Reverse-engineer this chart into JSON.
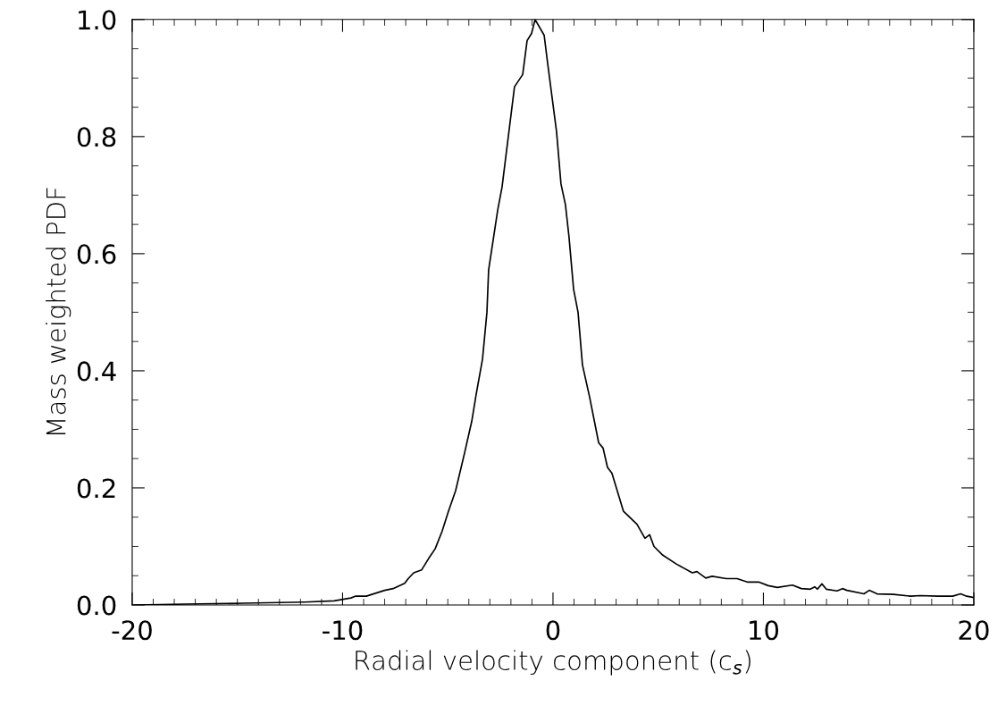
{
  "chart_data": {
    "type": "line",
    "xlabel": "Radial velocity component (c$_{s}$)",
    "ylabel": "Mass weighted PDF",
    "xlim": [
      -20,
      20
    ],
    "xticks": [
      -20,
      -10,
      0,
      10,
      20
    ],
    "ylim": [
      0,
      1.0
    ],
    "yticks": [
      {
        "value": 0,
        "label": "0.0"
      },
      {
        "value": 0.2,
        "label": "0.2"
      },
      {
        "value": 0.4,
        "label": "0.4"
      },
      {
        "value": 0.6,
        "label": "0.6"
      },
      {
        "value": 0.8,
        "label": "0.8"
      },
      {
        "value": 1.0,
        "label": "1.0"
      }
    ],
    "grid": false,
    "legend": false,
    "marker": "none",
    "line_style": "solid",
    "series": [
      {
        "color": "#000000",
        "x": [
          -19.9,
          -17.5,
          -14.7,
          -11.8,
          -10.4,
          -9.6,
          -9.4,
          -8.87,
          -8.0,
          -7.6,
          -7.05,
          -6.88,
          -6.62,
          -6.24,
          -5.9,
          -5.6,
          -5.27,
          -4.97,
          -4.63,
          -4.2,
          -3.86,
          -3.65,
          -3.35,
          -3.14,
          -3.06,
          -2.63,
          -2.42,
          -1.83,
          -1.44,
          -1.23,
          -1.02,
          -0.85,
          -0.42,
          -0.25,
          0.17,
          0.38,
          0.59,
          0.76,
          0.98,
          1.19,
          1.4,
          1.74,
          2.17,
          2.38,
          2.59,
          2.8,
          3.35,
          3.99,
          4.37,
          4.59,
          4.8,
          5.22,
          5.86,
          6.62,
          6.84,
          7.26,
          7.56,
          8.24,
          8.75,
          9.26,
          9.8,
          10.23,
          10.66,
          11.38,
          11.8,
          12.23,
          12.44,
          12.57,
          12.78,
          12.99,
          13.5,
          13.76,
          13.97,
          14.78,
          15.03,
          15.4,
          16.18,
          17.0,
          17.45,
          18.3,
          19.0,
          19.37,
          19.66,
          19.96
        ],
        "values": [
          0.0,
          0.0015,
          0.003,
          0.005,
          0.007,
          0.012,
          0.015,
          0.015,
          0.025,
          0.028,
          0.037,
          0.045,
          0.055,
          0.06,
          0.08,
          0.096,
          0.126,
          0.16,
          0.195,
          0.26,
          0.314,
          0.36,
          0.42,
          0.5,
          0.572,
          0.674,
          0.714,
          0.885,
          0.906,
          0.964,
          0.976,
          1.0,
          0.973,
          0.924,
          0.808,
          0.719,
          0.684,
          0.629,
          0.539,
          0.5,
          0.41,
          0.355,
          0.277,
          0.268,
          0.235,
          0.225,
          0.16,
          0.138,
          0.114,
          0.12,
          0.1,
          0.085,
          0.07,
          0.055,
          0.057,
          0.046,
          0.049,
          0.045,
          0.045,
          0.039,
          0.039,
          0.033,
          0.03,
          0.034,
          0.028,
          0.027,
          0.031,
          0.027,
          0.036,
          0.027,
          0.024,
          0.028,
          0.025,
          0.019,
          0.025,
          0.019,
          0.018,
          0.015,
          0.016,
          0.015,
          0.015,
          0.019,
          0.015,
          0.013
        ]
      }
    ]
  }
}
